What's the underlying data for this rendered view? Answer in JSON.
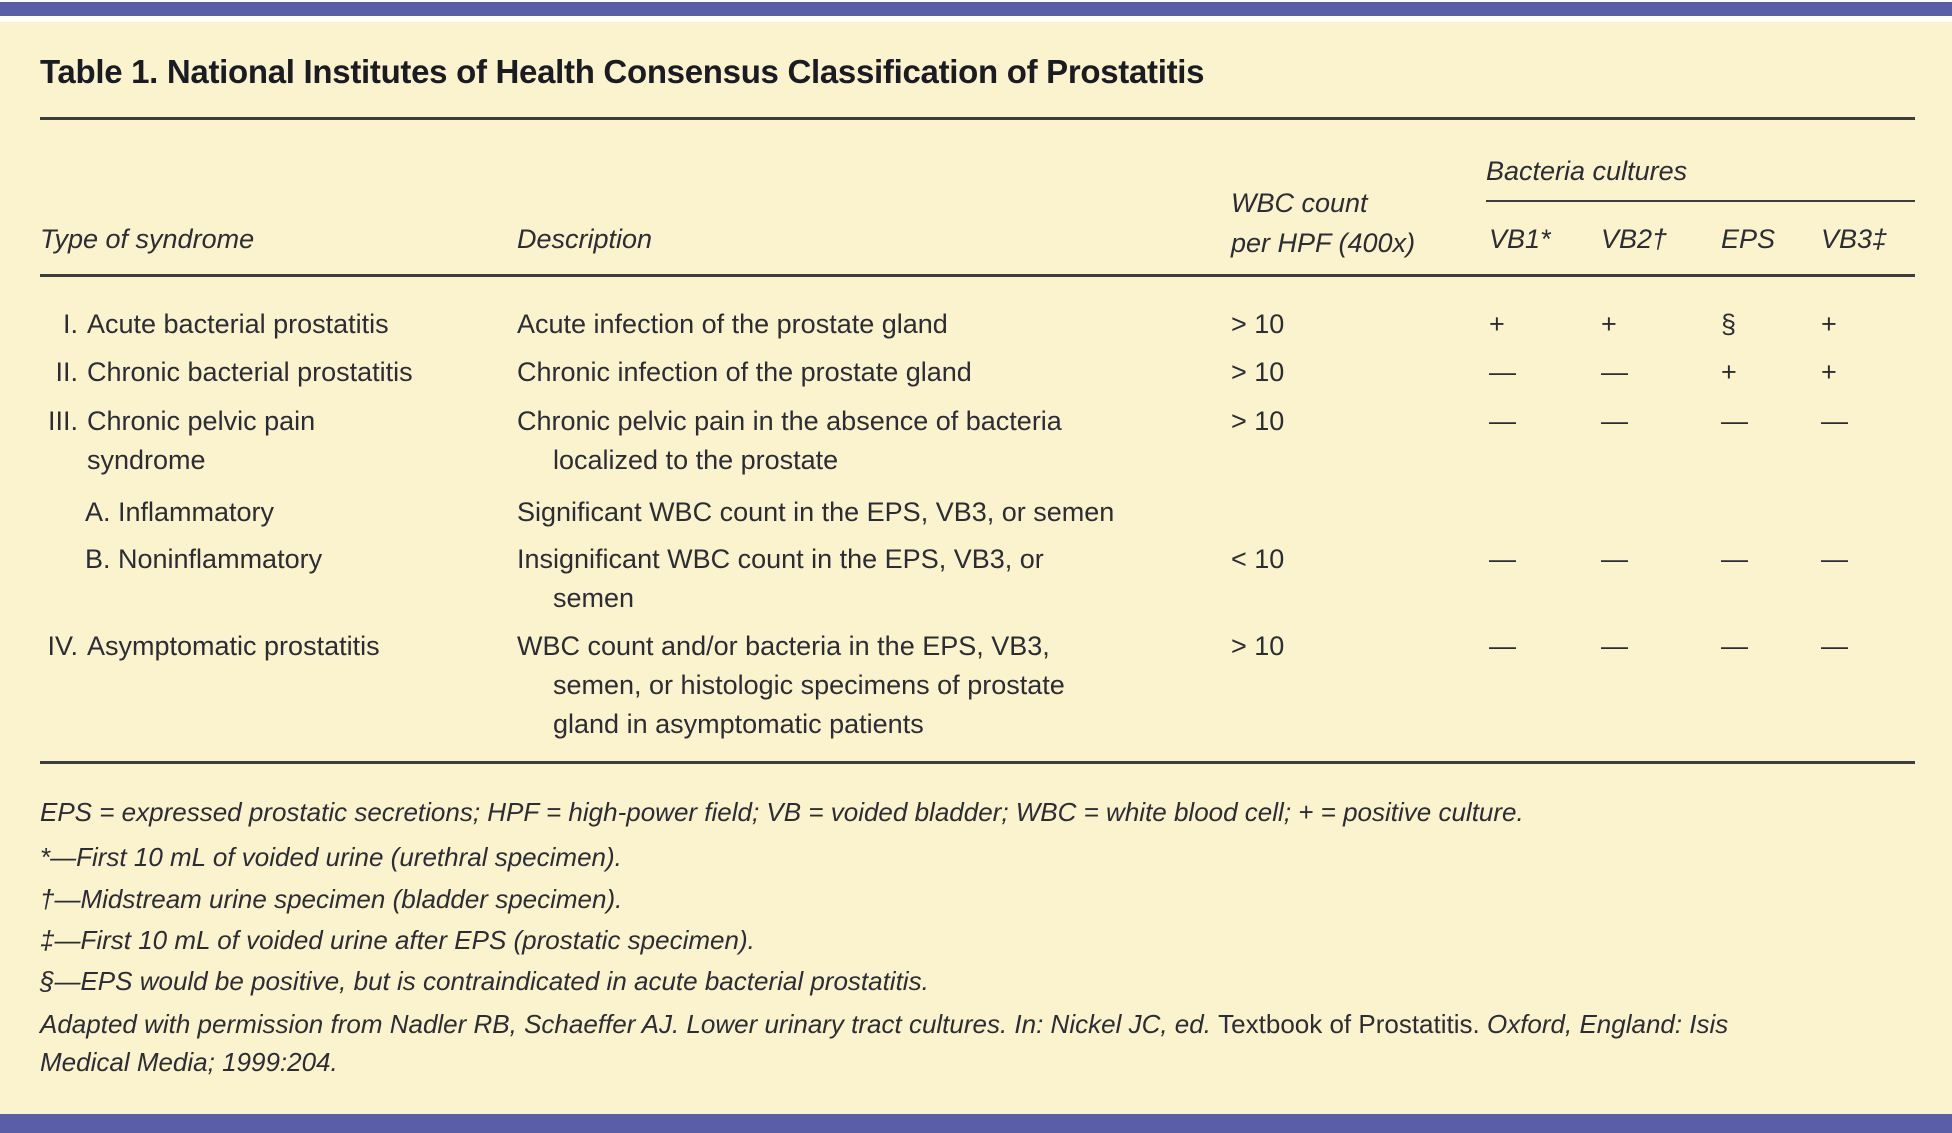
{
  "colors": {
    "background": "#faf3cd",
    "accent_bar": "#5a5ea7",
    "text": "#2c2c34"
  },
  "title": "Table 1. National Institutes of Health Consensus Classification of Prostatitis",
  "header": {
    "col_type": "Type of syndrome",
    "col_description": "Description",
    "col_wbc": "WBC count\nper HPF (400x)",
    "group_bacteria": "Bacteria cultures",
    "col_vb1": "VB1*",
    "col_vb2": "VB2†",
    "col_eps": "EPS",
    "col_vb3": "VB3‡"
  },
  "rows": [
    {
      "numeral": "I.",
      "label": "Acute bacterial prostatitis",
      "description": "Acute infection of the prostate gland",
      "wbc": "> 10",
      "vb1": "+",
      "vb2": "+",
      "eps": "§",
      "vb3": "+"
    },
    {
      "numeral": "II.",
      "label": "Chronic bacterial prostatitis",
      "description": "Chronic infection of the prostate gland",
      "wbc": "> 10",
      "vb1": "—",
      "vb2": "—",
      "eps": "+",
      "vb3": "+"
    },
    {
      "numeral": "III.",
      "label": "Chronic pelvic pain\nsyndrome",
      "description": "Chronic pelvic pain in the absence of bacteria\nlocalized to the prostate",
      "wbc": "> 10",
      "vb1": "—",
      "vb2": "—",
      "eps": "—",
      "vb3": "—"
    },
    {
      "numeral": "",
      "label": "A. Inflammatory",
      "description": "Significant WBC count in the EPS, VB3, or semen",
      "wbc": "",
      "vb1": "",
      "vb2": "",
      "eps": "",
      "vb3": ""
    },
    {
      "numeral": "",
      "label": "B. Noninflammatory",
      "description": "Insignificant WBC count in the EPS, VB3, or\nsemen",
      "wbc": "< 10",
      "vb1": "—",
      "vb2": "—",
      "eps": "—",
      "vb3": "—"
    },
    {
      "numeral": "IV.",
      "label": "Asymptomatic prostatitis",
      "description": "WBC count and/or bacteria in the EPS, VB3,\nsemen, or histologic specimens of prostate\ngland in asymptomatic patients",
      "wbc": "> 10",
      "vb1": "—",
      "vb2": "—",
      "eps": "—",
      "vb3": "—"
    }
  ],
  "footnotes": [
    "EPS = expressed prostatic secretions; HPF = high-power field; VB = voided bladder; WBC = white blood cell; + = positive culture.",
    "*—First 10 mL of voided urine (urethral specimen).",
    "†—Midstream urine specimen (bladder specimen).",
    "‡—First 10 mL of voided urine after EPS (prostatic specimen).",
    "§—EPS would be positive, but is contraindicated in acute bacterial prostatitis."
  ],
  "attribution": {
    "part1": "Adapted with permission from Nadler RB, Schaeffer AJ. Lower urinary tract cultures. In: Nickel JC, ed. ",
    "book": "Textbook of Prostatitis. ",
    "part2": "Oxford, England: Isis\nMedical Media; 1999:204."
  }
}
